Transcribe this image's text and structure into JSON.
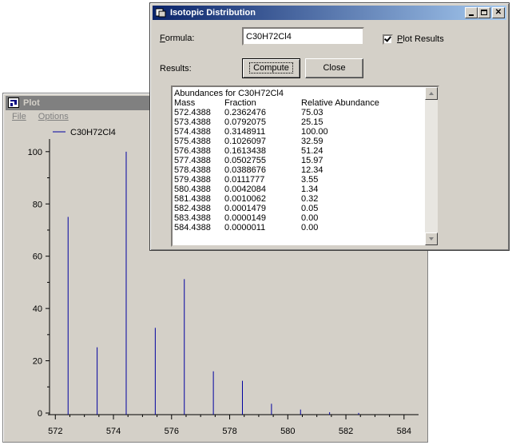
{
  "plot": {
    "title": "Plot",
    "menu": [
      "File",
      "Options"
    ],
    "chart_data": {
      "type": "bar",
      "legend": "C30H72Cl4",
      "legend_position": "top-left",
      "x": [
        572.4388,
        573.4388,
        574.4388,
        575.4388,
        576.4388,
        577.4388,
        578.4388,
        579.4388,
        580.4388,
        581.4388,
        582.4388,
        583.4388,
        584.4388
      ],
      "values": [
        75.03,
        25.15,
        100.0,
        32.59,
        51.24,
        15.97,
        12.34,
        3.55,
        1.34,
        0.32,
        0.05,
        0.0,
        0.0
      ],
      "xlim": [
        571.8,
        584.5
      ],
      "ylim": [
        0,
        103
      ],
      "xticks": [
        572,
        574,
        576,
        578,
        580,
        582,
        584
      ],
      "yticks": [
        0,
        20,
        40,
        60,
        80,
        100
      ],
      "bar_color": "#0000a0"
    }
  },
  "dialog": {
    "title": "Isotopic Distribution",
    "formula_label": "Formula:",
    "formula_value": "C30H72Cl4",
    "plot_results_label": "Plot Results",
    "plot_results_checked": true,
    "results_label": "Results:",
    "compute_label": "Compute",
    "close_label": "Close",
    "results_heading": "Abundances for C30H72Cl4",
    "columns": [
      "Mass",
      "Fraction",
      "Relative Abundance"
    ],
    "rows": [
      [
        "572.4388",
        "0.2362476",
        "75.03"
      ],
      [
        "573.4388",
        "0.0792075",
        "25.15"
      ],
      [
        "574.4388",
        "0.3148911",
        "100.00"
      ],
      [
        "575.4388",
        "0.1026097",
        "32.59"
      ],
      [
        "576.4388",
        "0.1613438",
        "51.24"
      ],
      [
        "577.4388",
        "0.0502755",
        "15.97"
      ],
      [
        "578.4388",
        "0.0388676",
        "12.34"
      ],
      [
        "579.4388",
        "0.0111777",
        "3.55"
      ],
      [
        "580.4388",
        "0.0042084",
        "1.34"
      ],
      [
        "581.4388",
        "0.0010062",
        "0.32"
      ],
      [
        "582.4388",
        "0.0001479",
        "0.05"
      ],
      [
        "583.4388",
        "0.0000149",
        "0.00"
      ],
      [
        "584.4388",
        "0.0000011",
        "0.00"
      ]
    ]
  }
}
